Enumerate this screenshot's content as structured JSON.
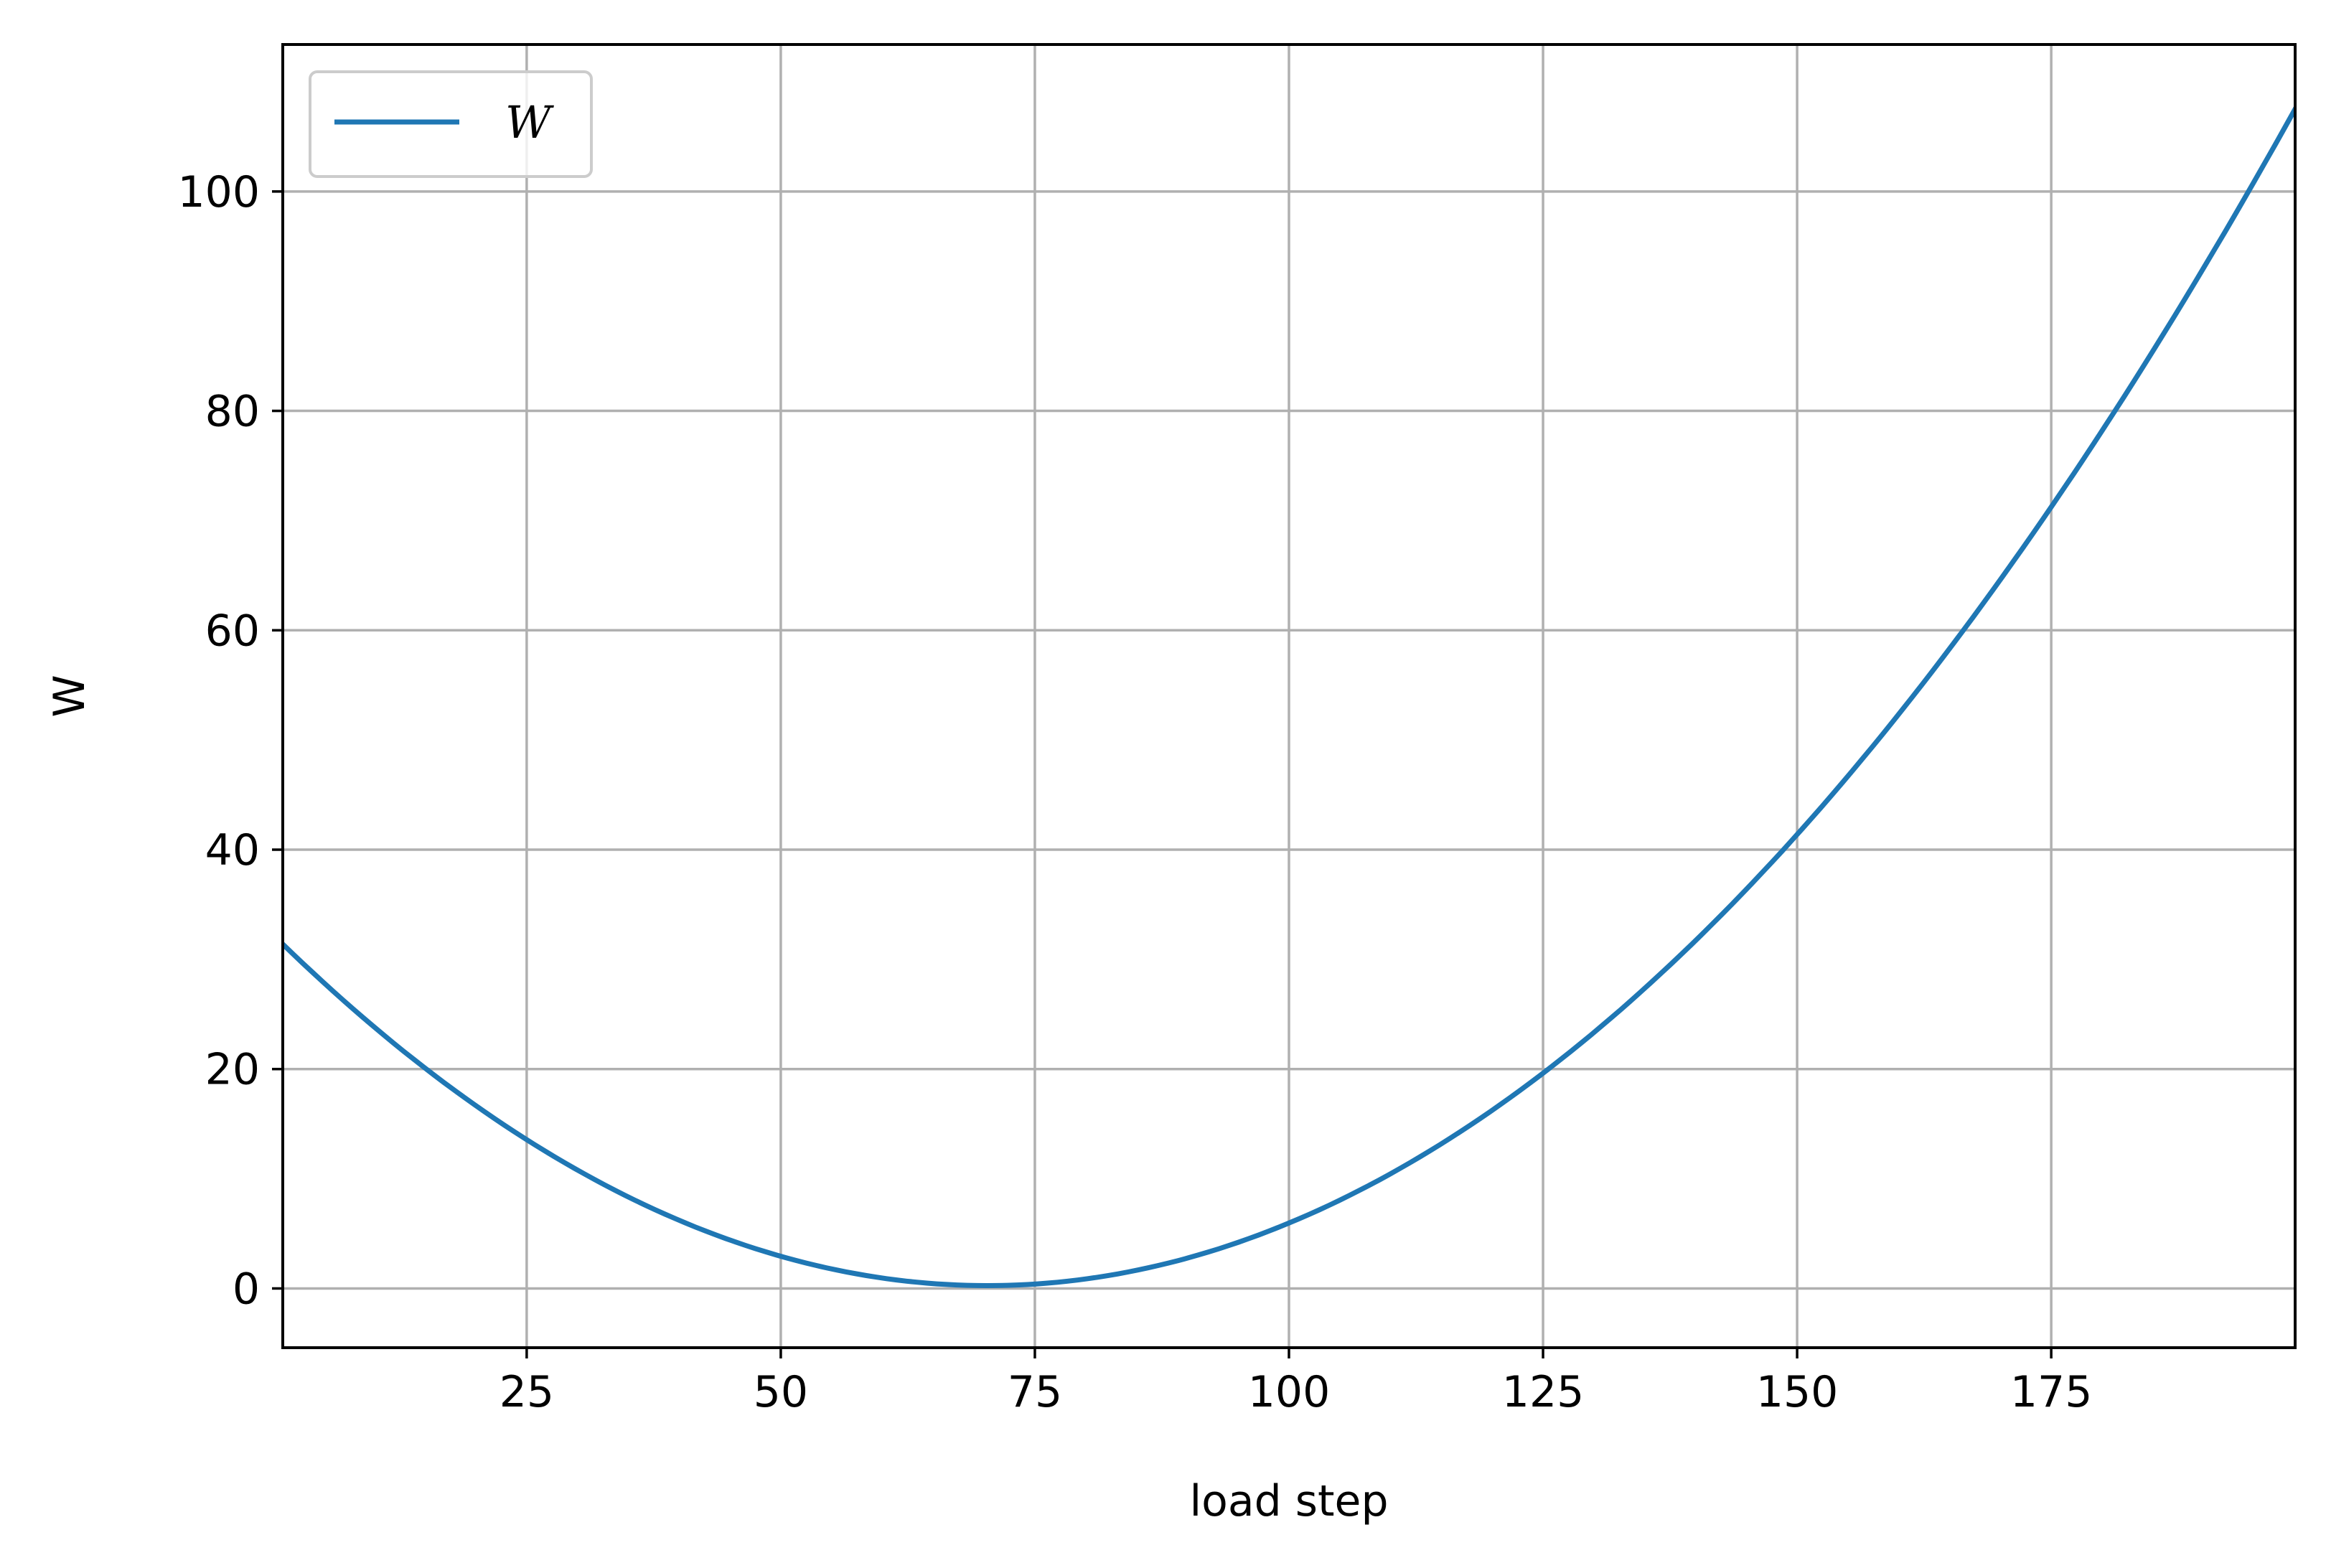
{
  "chart_data": {
    "type": "line",
    "title": "",
    "xlabel": "load step",
    "ylabel": "W",
    "xlim": [
      1,
      199
    ],
    "ylim": [
      -5.4,
      113.4
    ],
    "xticks": [
      25,
      50,
      75,
      100,
      125,
      150,
      175
    ],
    "yticks": [
      0,
      20,
      40,
      60,
      80,
      100
    ],
    "grid": true,
    "legend_position": "upper-left",
    "series": [
      {
        "name": "W",
        "color": "#1f77b4",
        "x": [
          1,
          5,
          10,
          15,
          20,
          25,
          30,
          35,
          40,
          45,
          50,
          55,
          60,
          65,
          66,
          70,
          75,
          80,
          85,
          90,
          95,
          100,
          105,
          110,
          115,
          120,
          125,
          130,
          135,
          140,
          145,
          150,
          155,
          160,
          165,
          170,
          175,
          180,
          185,
          190,
          195,
          199
        ],
        "y": [
          35.0,
          30.0,
          24.5,
          19.7,
          15.6,
          12.1,
          9.0,
          6.5,
          4.4,
          2.8,
          1.6,
          0.7,
          0.2,
          0.0,
          0.0,
          0.1,
          0.5,
          1.4,
          2.7,
          4.3,
          6.4,
          6.6,
          9.2,
          12.0,
          15.1,
          18.5,
          20.0,
          24.0,
          28.2,
          32.7,
          35.4,
          40.0,
          45.1,
          50.5,
          56.3,
          62.5,
          68.8,
          78.0,
          86.0,
          94.5,
          103.0,
          108.0
        ]
      }
    ]
  }
}
